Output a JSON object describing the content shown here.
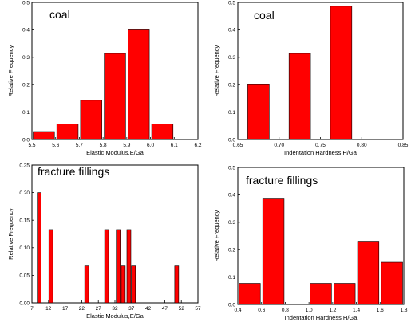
{
  "chart_data": [
    {
      "type": "bar",
      "title": "coal",
      "xlabel": "Elastic Modulus,E/Ga",
      "ylabel": "Relative Frequency",
      "xlim": [
        5.5,
        6.2
      ],
      "ylim": [
        0,
        0.5
      ],
      "xticks": [
        "5.5",
        "5.6",
        "5.7",
        "5.8",
        "5.9",
        "6.0",
        "6.1",
        "6.2"
      ],
      "yticks": [
        "0.0",
        "0.1",
        "0.2",
        "0.3",
        "0.4",
        "0.5"
      ],
      "bar_width": 0.09,
      "bars": [
        {
          "x": 5.55,
          "value": 0.029
        },
        {
          "x": 5.65,
          "value": 0.057
        },
        {
          "x": 5.75,
          "value": 0.143
        },
        {
          "x": 5.85,
          "value": 0.314
        },
        {
          "x": 5.95,
          "value": 0.4
        },
        {
          "x": 6.05,
          "value": 0.057
        }
      ]
    },
    {
      "type": "bar",
      "title": "coal",
      "xlabel": "Indentation Hardness H/Ga",
      "ylabel": "Relative Frequency",
      "xlim": [
        0.65,
        0.85
      ],
      "ylim": [
        0,
        0.5
      ],
      "xticks": [
        "0.65",
        "0.70",
        "0.75",
        "0.80",
        "0.85"
      ],
      "yticks": [
        "0.0",
        "0.1",
        "0.2",
        "0.3",
        "0.4",
        "0.5"
      ],
      "bar_width": 0.026,
      "bars": [
        {
          "x": 0.675,
          "value": 0.2
        },
        {
          "x": 0.725,
          "value": 0.314
        },
        {
          "x": 0.775,
          "value": 0.486
        }
      ]
    },
    {
      "type": "bar",
      "title": "fracture fillings",
      "xlabel": "Elastic Modulus,E/Ga",
      "ylabel": "Relative Frequency",
      "xlim": [
        7,
        57
      ],
      "ylim": [
        0,
        0.25
      ],
      "xticks": [
        "7",
        "12",
        "17",
        "22",
        "27",
        "32",
        "37",
        "42",
        "47",
        "52",
        "57"
      ],
      "yticks": [
        "0.00",
        "0.05",
        "0.10",
        "0.15",
        "0.20",
        "0.25"
      ],
      "bar_width": 1.2,
      "bars": [
        {
          "x": 9.2,
          "value": 0.2
        },
        {
          "x": 12.7,
          "value": 0.133
        },
        {
          "x": 23.5,
          "value": 0.067
        },
        {
          "x": 29.5,
          "value": 0.133
        },
        {
          "x": 33.0,
          "value": 0.133
        },
        {
          "x": 34.5,
          "value": 0.067
        },
        {
          "x": 36.2,
          "value": 0.133
        },
        {
          "x": 37.6,
          "value": 0.067
        },
        {
          "x": 50.6,
          "value": 0.067
        }
      ]
    },
    {
      "type": "bar",
      "title": "fracture fillings",
      "xlabel": "Indentation Hardness H/Ga",
      "ylabel": "Relative Frequency",
      "xlim": [
        0.4,
        1.8
      ],
      "ylim": [
        0,
        0.5
      ],
      "xticks": [
        "0.4",
        "0.6",
        "0.8",
        "1.0",
        "1.2",
        "1.4",
        "1.6",
        "1.8"
      ],
      "yticks": [
        "0.0",
        "0.1",
        "0.2",
        "0.3",
        "0.4",
        "0.5"
      ],
      "bar_width": 0.18,
      "bars": [
        {
          "x": 0.5,
          "value": 0.077
        },
        {
          "x": 0.7,
          "value": 0.385
        },
        {
          "x": 1.1,
          "value": 0.077
        },
        {
          "x": 1.3,
          "value": 0.077
        },
        {
          "x": 1.5,
          "value": 0.231
        },
        {
          "x": 1.7,
          "value": 0.154
        }
      ]
    }
  ],
  "colors": {
    "bar_fill": "#ff0000",
    "bar_stroke": "#000000",
    "axis": "#000000"
  }
}
